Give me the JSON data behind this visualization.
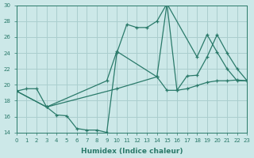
{
  "xlabel": "Humidex (Indice chaleur)",
  "xlim": [
    0,
    23
  ],
  "ylim": [
    14,
    30
  ],
  "xticks": [
    0,
    1,
    2,
    3,
    4,
    5,
    6,
    7,
    8,
    9,
    10,
    11,
    12,
    13,
    14,
    15,
    16,
    17,
    18,
    19,
    20,
    21,
    22,
    23
  ],
  "yticks": [
    14,
    16,
    18,
    20,
    22,
    24,
    26,
    28,
    30
  ],
  "bg_color": "#cce8e8",
  "grid_color": "#aacece",
  "line_color": "#2a7a6a",
  "lines": [
    {
      "x": [
        0,
        1,
        2,
        3,
        4,
        5,
        6,
        7,
        8,
        9,
        10,
        11,
        12,
        13,
        14,
        15,
        16,
        17,
        18,
        19,
        20,
        21,
        22,
        23
      ],
      "y": [
        19.2,
        19.5,
        19.5,
        17.2,
        16.2,
        16.1,
        14.5,
        14.3,
        14.3,
        14.0,
        24.0,
        27.6,
        27.2,
        27.2,
        28.0,
        30.2,
        19.3,
        21.1,
        21.2,
        23.5,
        26.3,
        24.0,
        22.0,
        20.5
      ]
    },
    {
      "x": [
        0,
        3,
        10,
        14,
        15,
        16,
        17,
        18,
        19,
        20,
        21,
        22,
        23
      ],
      "y": [
        19.2,
        17.2,
        19.5,
        21.0,
        19.3,
        19.3,
        19.5,
        19.9,
        20.3,
        20.5,
        20.5,
        20.6,
        20.5
      ]
    },
    {
      "x": [
        0,
        3,
        9,
        10,
        14,
        15,
        18,
        19,
        20,
        21,
        22,
        23
      ],
      "y": [
        19.2,
        17.2,
        20.5,
        24.2,
        21.0,
        30.2,
        23.5,
        26.3,
        24.1,
        22.0,
        20.5,
        20.5
      ]
    }
  ]
}
